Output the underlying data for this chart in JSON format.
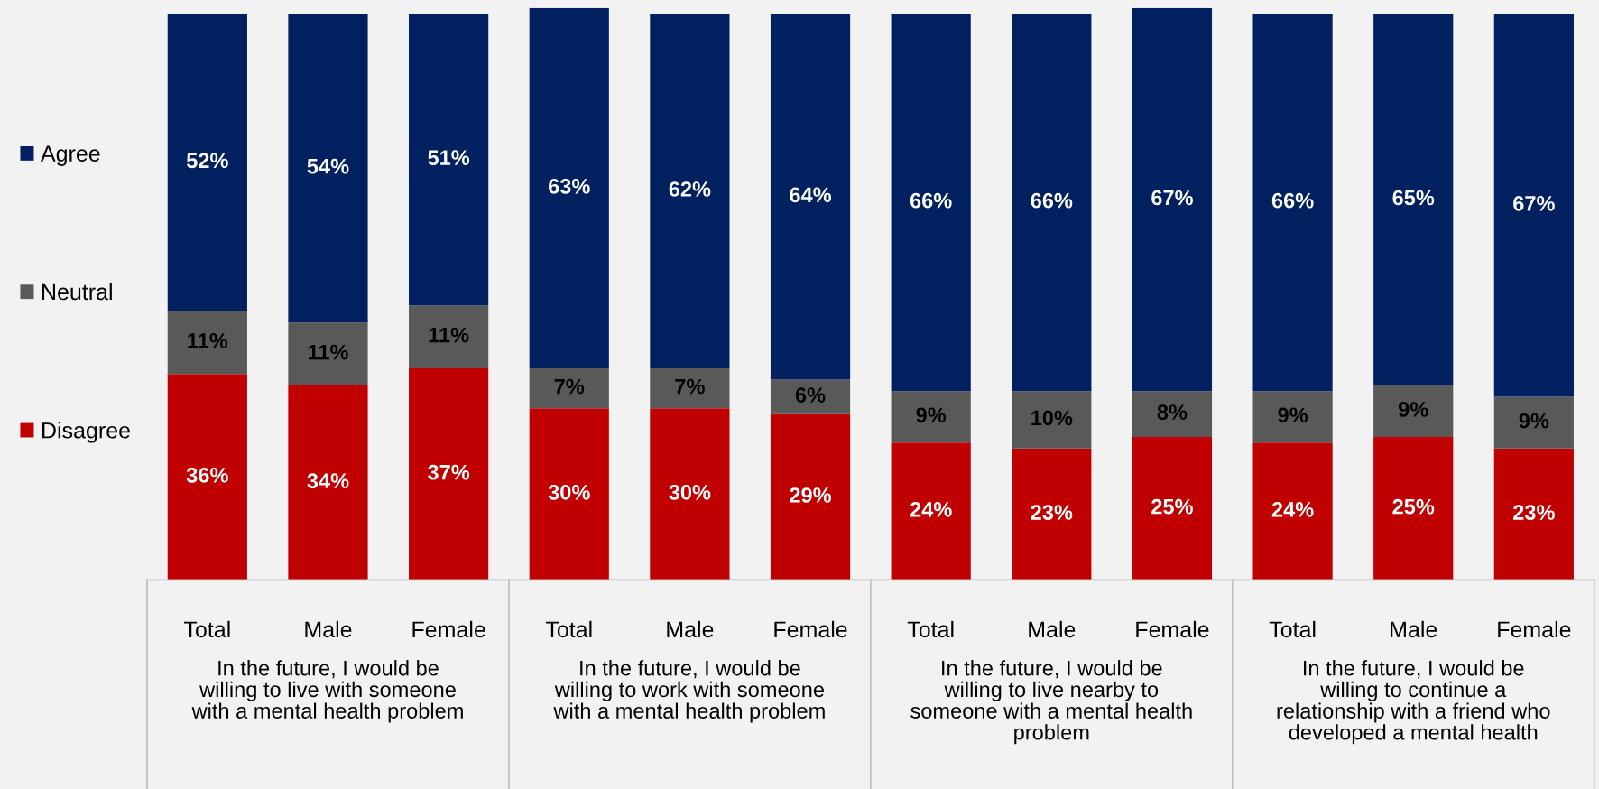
{
  "chart_data": {
    "type": "bar",
    "stacked": true,
    "legend": "left",
    "categories": [
      "Total",
      "Male",
      "Female",
      "Total",
      "Male",
      "Female",
      "Total",
      "Male",
      "Female",
      "Total",
      "Male",
      "Female"
    ],
    "series": [
      {
        "name": "Disagree",
        "color": "#c00000",
        "values": [
          36,
          34,
          37,
          30,
          30,
          29,
          24,
          23,
          25,
          24,
          25,
          23
        ],
        "value_labels": [
          "36%",
          "34%",
          "37%",
          "30%",
          "30%",
          "29%",
          "24%",
          "23%",
          "25%",
          "24%",
          "25%",
          "23%"
        ]
      },
      {
        "name": "Neutral",
        "color": "#595959",
        "values": [
          11,
          11,
          11,
          7,
          7,
          6,
          9,
          10,
          8,
          9,
          9,
          9
        ],
        "value_labels": [
          "11%",
          "11%",
          "11%",
          "7%",
          "7%",
          "6%",
          "9%",
          "10%",
          "8%",
          "9%",
          "9%",
          "9%"
        ]
      },
      {
        "name": "Agree",
        "color": "#002060",
        "values": [
          52,
          54,
          51,
          63,
          62,
          64,
          66,
          66,
          67,
          66,
          65,
          67
        ],
        "value_labels": [
          "52%",
          "54%",
          "51%",
          "63%",
          "62%",
          "64%",
          "66%",
          "66%",
          "67%",
          "66%",
          "65%",
          "67%"
        ]
      }
    ],
    "annotations": [
      "In the future, I would be\nwilling to live with someone\nwith a mental health problem",
      "In the future, I would be\nwilling to work with someone\nwith a mental health problem",
      "In the future, I would be\nwilling to live nearby to\nsomeone with a mental health\nproblem",
      "In the future, I would be\nwilling to continue a\nrelationship with a friend who\ndeveloped a mental health"
    ]
  }
}
